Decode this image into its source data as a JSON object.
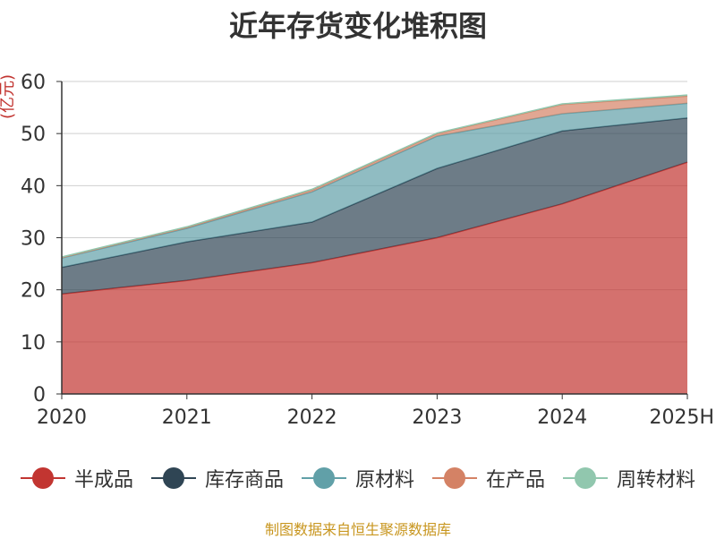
{
  "chart_data": {
    "type": "area",
    "title": "近年存货变化堆积图",
    "ylabel": "(亿元)",
    "xlabel": "",
    "categories": [
      "2020",
      "2021",
      "2022",
      "2023",
      "2024",
      "2025H"
    ],
    "ylim": [
      0,
      60
    ],
    "yticks": [
      "0",
      "10",
      "20",
      "30",
      "40",
      "50",
      "60"
    ],
    "stacked": true,
    "grid": true,
    "legend_position": "bottom",
    "series": [
      {
        "name": "半成品",
        "color": "#c23531",
        "values": [
          19.2,
          21.8,
          25.2,
          30.0,
          36.5,
          44.5
        ]
      },
      {
        "name": "库存商品",
        "color": "#2f4554",
        "values": [
          5.1,
          7.4,
          7.8,
          13.3,
          14.0,
          8.5
        ]
      },
      {
        "name": "原材料",
        "color": "#61a0a8",
        "values": [
          1.8,
          2.6,
          5.8,
          6.2,
          3.3,
          2.8
        ]
      },
      {
        "name": "在产品",
        "color": "#d48265",
        "values": [
          0.1,
          0.2,
          0.4,
          0.5,
          1.8,
          1.4
        ]
      },
      {
        "name": "周转材料",
        "color": "#91c7ae",
        "values": [
          0.1,
          0.1,
          0.1,
          0.1,
          0.1,
          0.2
        ]
      }
    ]
  },
  "footer": {
    "source": "制图数据来自恒生聚源数据库"
  }
}
